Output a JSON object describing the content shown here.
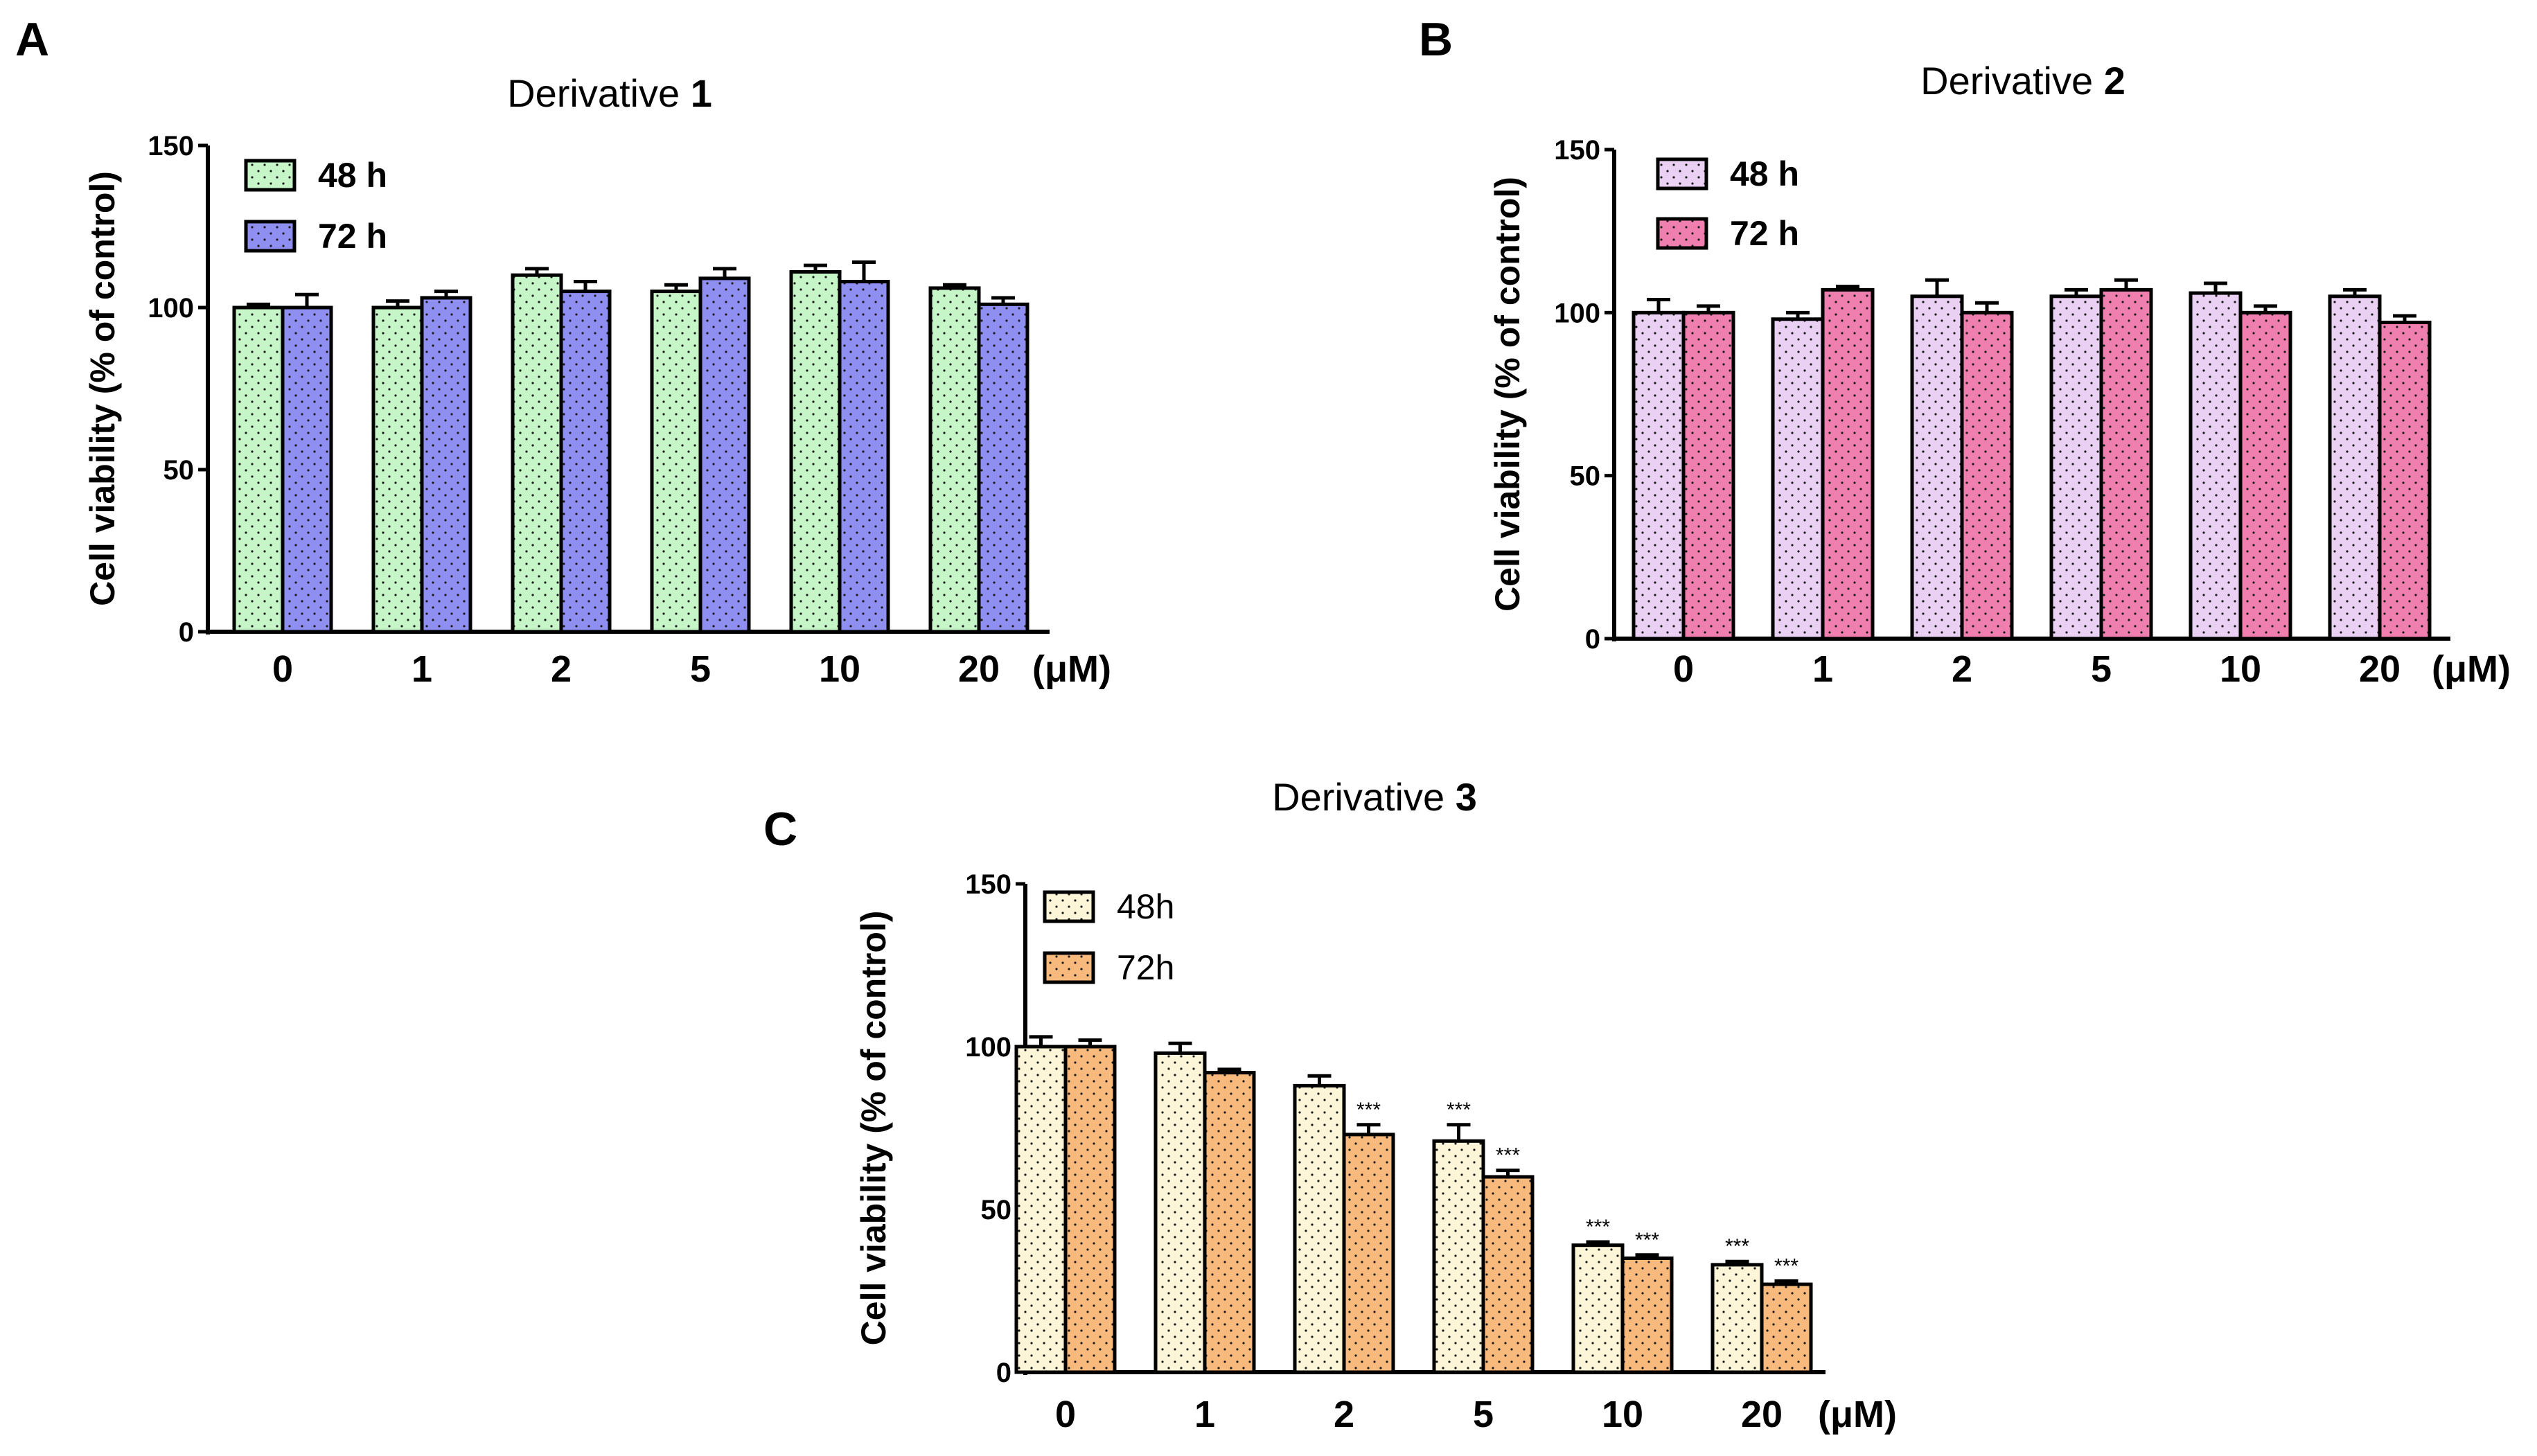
{
  "chart_data": [
    {
      "panel": "A",
      "type": "bar",
      "title": "Derivative 1",
      "title_prefix": "Derivative ",
      "title_number": "1",
      "xlabel": "(μM)",
      "ylabel": "Cell viability (% of control)",
      "ylim": [
        0,
        150
      ],
      "yticks": [
        0,
        50,
        100,
        150
      ],
      "categories": [
        "0",
        "1",
        "2",
        "5",
        "10",
        "20"
      ],
      "legend": {
        "placement": "top-left"
      },
      "series": [
        {
          "name": "48 h",
          "color": "#c6f5c8",
          "values": [
            100,
            100,
            110,
            105,
            111,
            106
          ],
          "errors": [
            1,
            2,
            2,
            2,
            2,
            1
          ],
          "significance": [
            "",
            "",
            "",
            "",
            "",
            ""
          ]
        },
        {
          "name": "72 h",
          "color": "#8f8ff2",
          "values": [
            100,
            103,
            105,
            109,
            108,
            101
          ],
          "errors": [
            4,
            2,
            3,
            3,
            6,
            2
          ],
          "significance": [
            "",
            "",
            "",
            "",
            "",
            ""
          ]
        }
      ]
    },
    {
      "panel": "B",
      "type": "bar",
      "title": "Derivative 2",
      "title_prefix": "Derivative ",
      "title_number": "2",
      "xlabel": "(μM)",
      "ylabel": "Cell viability (% of control)",
      "ylim": [
        0,
        150
      ],
      "yticks": [
        0,
        50,
        100,
        150
      ],
      "categories": [
        "0",
        "1",
        "2",
        "5",
        "10",
        "20"
      ],
      "legend": {
        "placement": "top-left"
      },
      "series": [
        {
          "name": "48 h",
          "color": "#ead0f3",
          "values": [
            100,
            98,
            105,
            105,
            106,
            105
          ],
          "errors": [
            4,
            2,
            5,
            2,
            3,
            2
          ],
          "significance": [
            "",
            "",
            "",
            "",
            "",
            ""
          ]
        },
        {
          "name": "72 h",
          "color": "#ef7fae",
          "values": [
            100,
            107,
            100,
            107,
            100,
            97
          ],
          "errors": [
            2,
            1,
            3,
            3,
            2,
            2
          ],
          "significance": [
            "",
            "",
            "",
            "",
            "",
            ""
          ]
        }
      ]
    },
    {
      "panel": "C",
      "type": "bar",
      "title": "Derivative 3",
      "title_prefix": "Derivative ",
      "title_number": "3",
      "xlabel": "(μM)",
      "ylabel": "Cell viability (% of control)",
      "ylim": [
        0,
        150
      ],
      "yticks": [
        0,
        50,
        100,
        150
      ],
      "categories": [
        "0",
        "1",
        "2",
        "5",
        "10",
        "20"
      ],
      "legend": {
        "placement": "top-left"
      },
      "series": [
        {
          "name": "48h",
          "color": "#fcf5d8",
          "values": [
            100,
            98,
            88,
            71,
            39,
            33
          ],
          "errors": [
            3,
            3,
            3,
            5,
            1,
            1
          ],
          "significance": [
            "",
            "",
            "",
            "***",
            "***",
            "***"
          ]
        },
        {
          "name": "72h",
          "color": "#f8b97d",
          "values": [
            100,
            92,
            73,
            60,
            35,
            27
          ],
          "errors": [
            2,
            1,
            3,
            2,
            1,
            1
          ],
          "significance": [
            "",
            "",
            "***",
            "***",
            "***",
            "***"
          ]
        }
      ]
    }
  ]
}
